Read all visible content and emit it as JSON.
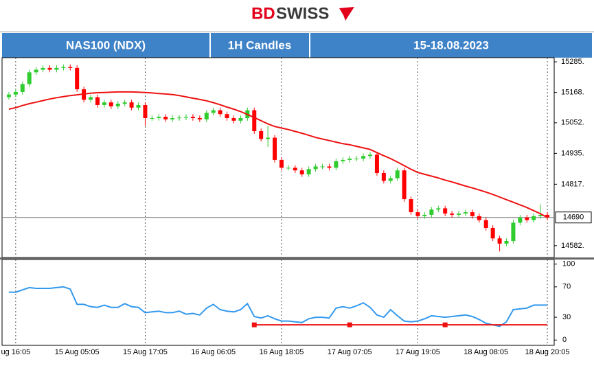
{
  "header": {
    "logo_bd": "BD",
    "logo_swiss": "SWISS",
    "cells": [
      "NAS100 (NDX)",
      "1H Candles",
      "15-18.08.2023"
    ]
  },
  "chart_data": [
    {
      "type": "candlestick",
      "categories": [
        null,
        "ug 16:05",
        null,
        null,
        null,
        null,
        null,
        null,
        null,
        null,
        "15 Aug 05:05",
        null,
        null,
        null,
        null,
        null,
        null,
        null,
        null,
        null,
        "15 Aug 17:05",
        null,
        null,
        null,
        null,
        null,
        null,
        null,
        null,
        null,
        "16 Aug 06:05",
        null,
        null,
        null,
        null,
        null,
        null,
        null,
        null,
        null,
        "16 Aug 18:05",
        null,
        null,
        null,
        null,
        null,
        null,
        null,
        null,
        null,
        "17 Aug 07:05",
        null,
        null,
        null,
        null,
        null,
        null,
        null,
        null,
        null,
        "17 Aug 19:05",
        null,
        null,
        null,
        null,
        null,
        null,
        null,
        null,
        null,
        "18 Aug 08:05",
        null,
        null,
        null,
        null,
        null,
        null,
        null,
        null,
        "18 Aug 20:05"
      ],
      "open": [
        15150,
        15160,
        15170,
        15200,
        15245,
        15255,
        15262,
        15255,
        15262,
        15265,
        15262,
        15180,
        15140,
        15150,
        15120,
        15130,
        15115,
        15125,
        15130,
        15110,
        15120,
        15070,
        15070,
        15075,
        15065,
        15070,
        15072,
        15075,
        15070,
        15065,
        15090,
        15100,
        15085,
        15070,
        15060,
        15070,
        15100,
        15020,
        14990,
        14995,
        14910,
        14880,
        14880,
        14870,
        14855,
        14875,
        14885,
        14885,
        14880,
        14905,
        14910,
        14915,
        14915,
        14925,
        14930,
        14860,
        14830,
        14840,
        14870,
        14760,
        14710,
        14695,
        14700,
        14720,
        14725,
        14705,
        14700,
        14705,
        14710,
        14695,
        14680,
        14650,
        14610,
        14590,
        14600,
        14670,
        14690,
        14680,
        14695,
        14700
      ],
      "high": [
        15170,
        15180,
        15210,
        15255,
        15265,
        15272,
        15272,
        15272,
        15275,
        15275,
        15272,
        15190,
        15160,
        15160,
        15140,
        15140,
        15135,
        15140,
        15140,
        15130,
        15130,
        15080,
        15085,
        15085,
        15080,
        15082,
        15085,
        15085,
        15080,
        15100,
        15110,
        15110,
        15095,
        15080,
        15080,
        15110,
        15110,
        15030,
        15040,
        15005,
        14920,
        14890,
        14890,
        14880,
        14885,
        14895,
        14895,
        14895,
        14915,
        14920,
        14925,
        14925,
        14935,
        14940,
        14940,
        14870,
        14850,
        14880,
        14880,
        14770,
        14720,
        14710,
        14730,
        14735,
        14735,
        14715,
        14715,
        14720,
        14720,
        14705,
        14690,
        14660,
        14620,
        14610,
        14680,
        14700,
        14700,
        14705,
        14740,
        14710
      ],
      "low": [
        15140,
        15150,
        15160,
        15190,
        15235,
        15245,
        15245,
        15245,
        15252,
        15252,
        15170,
        15130,
        15130,
        15110,
        15110,
        15105,
        15105,
        15115,
        15100,
        15100,
        15040,
        15060,
        15060,
        15055,
        15055,
        15060,
        15062,
        15060,
        15055,
        15055,
        15080,
        15075,
        15060,
        15050,
        15050,
        15060,
        15010,
        14980,
        14960,
        14900,
        14870,
        14870,
        14860,
        14845,
        14845,
        14865,
        14875,
        14870,
        14870,
        14895,
        14900,
        14905,
        14905,
        14915,
        14850,
        14820,
        14820,
        14830,
        14750,
        14700,
        14685,
        14685,
        14690,
        14710,
        14695,
        14690,
        14690,
        14695,
        14685,
        14670,
        14640,
        14600,
        14560,
        14580,
        14590,
        14660,
        14670,
        14670,
        14685,
        14680
      ],
      "close": [
        15160,
        15170,
        15200,
        15245,
        15255,
        15262,
        15255,
        15262,
        15265,
        15262,
        15180,
        15140,
        15150,
        15120,
        15130,
        15115,
        15125,
        15130,
        15110,
        15120,
        15070,
        15070,
        15075,
        15065,
        15070,
        15072,
        15075,
        15070,
        15065,
        15090,
        15100,
        15085,
        15070,
        15060,
        15070,
        15100,
        15020,
        14990,
        14995,
        14910,
        14880,
        14880,
        14870,
        14855,
        14875,
        14885,
        14885,
        14880,
        14905,
        14910,
        14915,
        14915,
        14925,
        14930,
        14860,
        14830,
        14840,
        14870,
        14760,
        14710,
        14695,
        14700,
        14720,
        14725,
        14705,
        14700,
        14705,
        14710,
        14695,
        14680,
        14650,
        14610,
        14590,
        14600,
        14670,
        14690,
        14680,
        14695,
        14700,
        14690
      ],
      "up_color": "#2ecc2e",
      "down_color": "#ff0000",
      "ma": {
        "color": "#ee1111",
        "values": [
          15104,
          15110,
          15118,
          15125,
          15131,
          15137,
          15143,
          15148,
          15152,
          15156,
          15159,
          15162,
          15165,
          15167,
          15168,
          15169,
          15170,
          15170,
          15170,
          15169,
          15168,
          15166,
          15164,
          15162,
          15160,
          15156,
          15151,
          15146,
          15141,
          15136,
          15129,
          15121,
          15112,
          15104,
          15095,
          15084,
          15072,
          15060,
          15048,
          15038,
          15032,
          15026,
          15019,
          15012,
          15004,
          14996,
          14990,
          14984,
          14978,
          14972,
          14968,
          14962,
          14956,
          14950,
          14938,
          14926,
          14915,
          14902,
          14888,
          14874,
          14862,
          14855,
          14848,
          14841,
          14833,
          14826,
          14818,
          14810,
          14803,
          14795,
          14787,
          14778,
          14768,
          14758,
          14748,
          14738,
          14728,
          14716,
          14704,
          14690
        ]
      },
      "last_price": 14690,
      "ylim": [
        14537,
        15301
      ],
      "yticks": [
        {
          "value": 15285,
          "label": "15285."
        },
        {
          "value": 15168,
          "label": "15168."
        },
        {
          "value": 15052,
          "label": "15052."
        },
        {
          "value": 14935,
          "label": "14935."
        },
        {
          "value": 14817,
          "label": "14817."
        },
        {
          "value": 14582,
          "label": "14582."
        }
      ]
    },
    {
      "type": "line",
      "series": [
        {
          "color": "#3399ee",
          "values": [
            63,
            63,
            66,
            69,
            68,
            68,
            68,
            69,
            70,
            67,
            47,
            47,
            44,
            43,
            46,
            43,
            43,
            48,
            44,
            43,
            36,
            37,
            38,
            36,
            36,
            38,
            34,
            35,
            33,
            42,
            47,
            40,
            38,
            37,
            40,
            48,
            31,
            29,
            32,
            28,
            25,
            25,
            24,
            23,
            28,
            30,
            30,
            29,
            42,
            44,
            42,
            45,
            49,
            43,
            33,
            30,
            40,
            32,
            25,
            24,
            25,
            28,
            32,
            31,
            30,
            31,
            32,
            33,
            31,
            27,
            22,
            20,
            18,
            24,
            40,
            41,
            42,
            46,
            46,
            46
          ]
        },
        {
          "color": "#ee1111",
          "values": [
            null,
            null,
            null,
            null,
            null,
            null,
            null,
            null,
            null,
            null,
            null,
            null,
            null,
            null,
            null,
            null,
            null,
            null,
            null,
            null,
            null,
            null,
            null,
            null,
            null,
            null,
            null,
            null,
            null,
            null,
            null,
            null,
            null,
            null,
            null,
            null,
            20,
            20,
            20,
            20,
            20,
            20,
            20,
            20,
            20,
            20,
            20,
            20,
            20,
            20,
            20,
            20,
            20,
            20,
            20,
            20,
            20,
            20,
            20,
            20,
            20,
            20,
            20,
            20,
            20,
            20,
            20,
            20,
            20,
            20,
            20,
            20,
            20,
            20,
            20,
            20,
            20,
            20,
            20,
            20
          ],
          "markers": [
            36,
            50,
            64
          ]
        }
      ],
      "ylim": [
        -7,
        106
      ],
      "yticks": [
        100,
        70,
        30,
        0
      ]
    }
  ]
}
